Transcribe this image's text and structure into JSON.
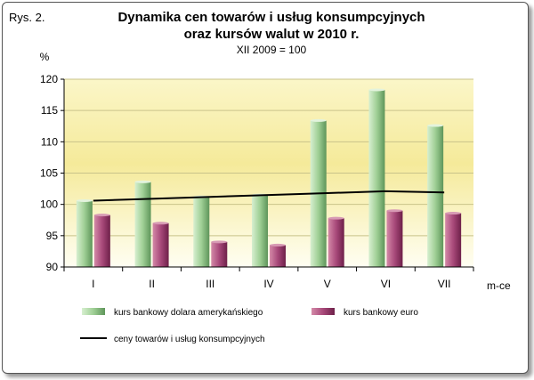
{
  "figure_label": "Rys. 2.",
  "chart_data": {
    "type": "bar",
    "title": "Dynamika cen towarów i usług konsumpcyjnych",
    "title_line2": "oraz kursów walut w 2010 r.",
    "subtitle": "XII 2009 = 100",
    "ylabel": "%",
    "xlabel": "m-ce",
    "categories": [
      "I",
      "II",
      "III",
      "IV",
      "V",
      "VI",
      "VII"
    ],
    "ylim": [
      90,
      120
    ],
    "yticks": [
      90,
      95,
      100,
      105,
      110,
      115,
      120
    ],
    "grid": true,
    "legend_position": "bottom",
    "series": [
      {
        "name": "kurs bankowy dolara amerykańskiego",
        "kind": "bar",
        "color": "#8cbf84",
        "values": [
          100.6,
          103.6,
          101.2,
          101.5,
          113.4,
          118.3,
          112.6
        ]
      },
      {
        "name": "kurs bankowy euro",
        "kind": "bar",
        "color": "#a3476e",
        "values": [
          98.3,
          97.0,
          94.0,
          93.5,
          97.8,
          99.0,
          98.6
        ]
      },
      {
        "name": "ceny towarów i usług konsumpcyjnych",
        "kind": "line",
        "color": "#000000",
        "values": [
          100.6,
          100.9,
          101.2,
          101.5,
          101.8,
          102.1,
          101.9
        ]
      }
    ]
  }
}
